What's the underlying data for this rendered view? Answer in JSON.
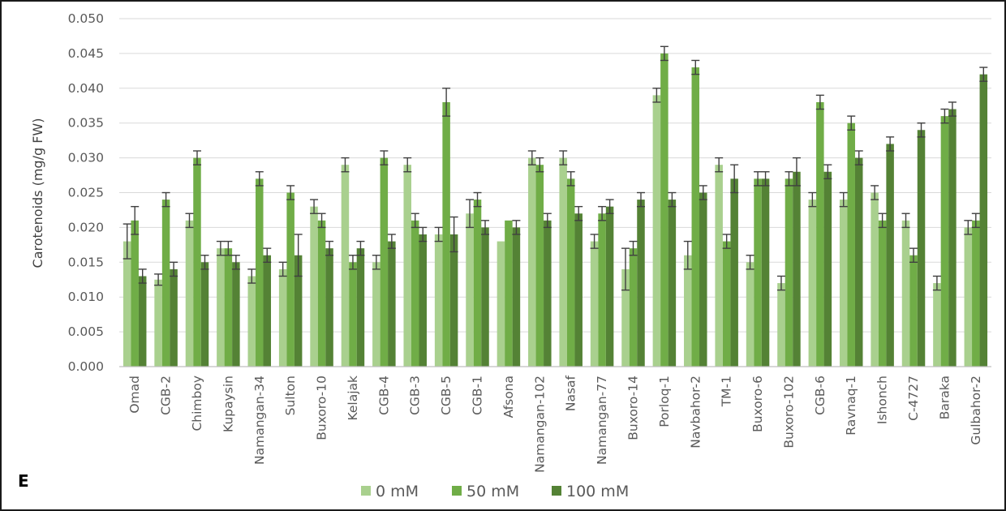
{
  "panel_label": "E",
  "colors": {
    "0 mM": "#a9d08e",
    "50 mM": "#70ad47",
    "100 mM": "#548235",
    "grid": "#d9d9d9",
    "error": "#404040"
  },
  "chart_data": {
    "type": "bar",
    "title": "",
    "xlabel": "",
    "ylabel": "Carotenoids (mg/g FW)",
    "ylim": [
      0,
      0.05
    ],
    "yticks": [
      "0.000",
      "0.005",
      "0.010",
      "0.015",
      "0.020",
      "0.025",
      "0.030",
      "0.035",
      "0.040",
      "0.045",
      "0.050"
    ],
    "grid": true,
    "legend_position": "bottom",
    "categories": [
      "Omad",
      "CGB-2",
      "Chimboy",
      "Kupaysin",
      "Namangan-34",
      "Sulton",
      "Buxoro-10",
      "Kelajak",
      "CGB-4",
      "CGB-3",
      "CGB-5",
      "CGB-1",
      "Afsona",
      "Namangan-102",
      "Nasaf",
      "Namangan-77",
      "Buxoro-14",
      "Porloq-1",
      "Navbahor-2",
      "TM-1",
      "Buxoro-6",
      "Buxoro-102",
      "CGB-6",
      "Ravnaq-1",
      "Ishonch",
      "C-4727",
      "Baraka",
      "Gulbahor-2"
    ],
    "series": [
      {
        "name": "0 mM",
        "values": [
          0.018,
          0.0125,
          0.021,
          0.017,
          0.013,
          0.014,
          0.023,
          0.029,
          0.015,
          0.029,
          0.019,
          0.022,
          0.018,
          0.03,
          0.03,
          0.018,
          0.014,
          0.039,
          0.016,
          0.029,
          0.015,
          0.012,
          0.024,
          0.024,
          0.025,
          0.021,
          0.012,
          0.02
        ],
        "errors": [
          0.0025,
          0.0008,
          0.001,
          0.001,
          0.001,
          0.001,
          0.001,
          0.001,
          0.001,
          0.001,
          0.001,
          0.002,
          0.0,
          0.001,
          0.001,
          0.001,
          0.003,
          0.001,
          0.002,
          0.001,
          0.001,
          0.001,
          0.001,
          0.001,
          0.001,
          0.001,
          0.001,
          0.001
        ]
      },
      {
        "name": "50 mM",
        "values": [
          0.021,
          0.024,
          0.03,
          0.017,
          0.027,
          0.025,
          0.021,
          0.015,
          0.03,
          0.021,
          0.038,
          0.024,
          0.021,
          0.029,
          0.027,
          0.022,
          0.017,
          0.045,
          0.043,
          0.018,
          0.027,
          0.027,
          0.038,
          0.035,
          0.021,
          0.016,
          0.036,
          0.021
        ],
        "errors": [
          0.002,
          0.001,
          0.001,
          0.001,
          0.001,
          0.001,
          0.001,
          0.001,
          0.001,
          0.001,
          0.002,
          0.001,
          0.0,
          0.001,
          0.001,
          0.001,
          0.001,
          0.001,
          0.001,
          0.001,
          0.001,
          0.001,
          0.001,
          0.001,
          0.001,
          0.001,
          0.001,
          0.001
        ]
      },
      {
        "name": "100 mM",
        "values": [
          0.013,
          0.014,
          0.015,
          0.015,
          0.016,
          0.016,
          0.017,
          0.017,
          0.018,
          0.019,
          0.019,
          0.02,
          0.02,
          0.021,
          0.022,
          0.023,
          0.024,
          0.024,
          0.025,
          0.027,
          0.027,
          0.028,
          0.028,
          0.03,
          0.032,
          0.034,
          0.037,
          0.042
        ],
        "errors": [
          0.001,
          0.001,
          0.001,
          0.001,
          0.001,
          0.003,
          0.001,
          0.001,
          0.001,
          0.001,
          0.0025,
          0.001,
          0.001,
          0.001,
          0.001,
          0.001,
          0.001,
          0.001,
          0.001,
          0.002,
          0.001,
          0.002,
          0.001,
          0.001,
          0.001,
          0.001,
          0.001,
          0.001
        ]
      }
    ]
  }
}
